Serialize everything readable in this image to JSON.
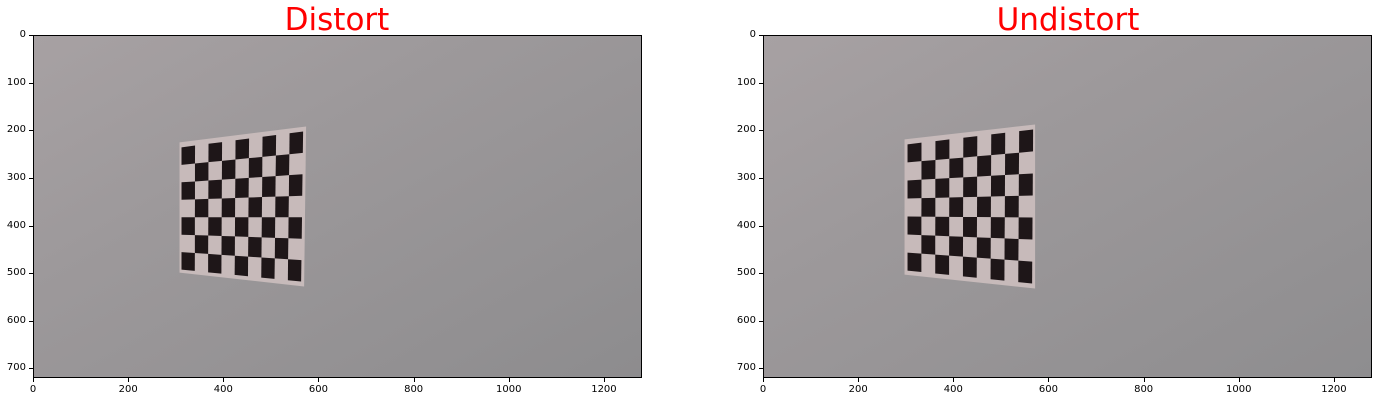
{
  "panels": [
    {
      "title": "Distort",
      "y_ticks": [
        "0",
        "100",
        "200",
        "300",
        "400",
        "500",
        "600",
        "700"
      ],
      "x_ticks": [
        "0",
        "200",
        "400",
        "600",
        "800",
        "1000",
        "1200"
      ]
    },
    {
      "title": "Undistort",
      "y_ticks": [
        "0",
        "100",
        "200",
        "300",
        "400",
        "500",
        "600",
        "700"
      ],
      "x_ticks": [
        "0",
        "200",
        "400",
        "600",
        "800",
        "1000",
        "1200"
      ]
    }
  ],
  "image": {
    "width": 1280,
    "height": 720,
    "wall_color": "#9a9899",
    "square_color": "#1e1618",
    "board_color": "#c9bcbc"
  }
}
